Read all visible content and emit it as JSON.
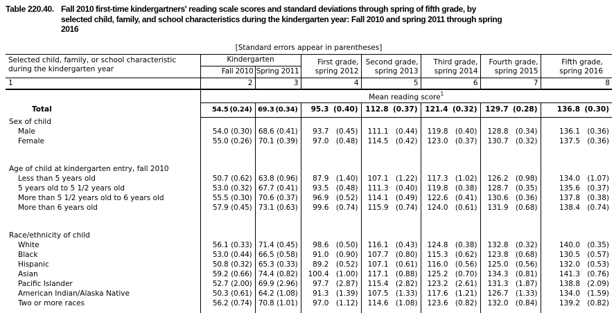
{
  "title": {
    "label": "Table 220.40.",
    "text": "Fall 2010 first-time kindergartners' reading scale scores and standard deviations through spring of fifth grade, by\nselected child, family, and school characteristics during the kindergarten year: Fall 2010 and spring 2011 through spring\n2016"
  },
  "note": "[Standard errors appear in parentheses]",
  "table": {
    "stub_header": "Selected child, family, or school characteristic\nduring the kindergarten year",
    "stub_number": "1",
    "group_header": "Kindergarten",
    "columns": [
      {
        "label": "Fall 2010",
        "number": "2"
      },
      {
        "label": "Spring 2011",
        "number": "3"
      },
      {
        "label": "First grade,\nspring 2012",
        "number": "4"
      },
      {
        "label": "Second grade,\nspring 2013",
        "number": "5"
      },
      {
        "label": "Third grade,\nspring 2014",
        "number": "6"
      },
      {
        "label": "Fourth grade,\nspring 2015",
        "number": "7"
      },
      {
        "label": "Fifth grade,\nspring 2016",
        "number": "8"
      }
    ],
    "measure_header": "Mean reading score",
    "measure_header_sup": "1",
    "rows": [
      {
        "type": "total",
        "label": "Total",
        "values": [
          [
            "54.5",
            "(0.24)"
          ],
          [
            "69.3",
            "(0.34)"
          ],
          [
            "95.3",
            "(0.40)"
          ],
          [
            "112.8",
            "(0.37)"
          ],
          [
            "121.4",
            "(0.32)"
          ],
          [
            "129.7",
            "(0.28)"
          ],
          [
            "136.8",
            "(0.30)"
          ]
        ]
      },
      {
        "type": "section",
        "label": "Sex of child"
      },
      {
        "type": "data",
        "label": "Male",
        "values": [
          [
            "54.0",
            "(0.30)"
          ],
          [
            "68.6",
            "(0.41)"
          ],
          [
            "93.7",
            "(0.45)"
          ],
          [
            "111.1",
            "(0.44)"
          ],
          [
            "119.8",
            "(0.40)"
          ],
          [
            "128.8",
            "(0.34)"
          ],
          [
            "136.1",
            "(0.36)"
          ]
        ]
      },
      {
        "type": "data",
        "label": "Female",
        "values": [
          [
            "55.0",
            "(0.26)"
          ],
          [
            "70.1",
            "(0.39)"
          ],
          [
            "97.0",
            "(0.48)"
          ],
          [
            "114.5",
            "(0.42)"
          ],
          [
            "123.0",
            "(0.37)"
          ],
          [
            "130.7",
            "(0.32)"
          ],
          [
            "137.5",
            "(0.36)"
          ]
        ]
      },
      {
        "type": "spacer"
      },
      {
        "type": "section",
        "label": "Age of child at kindergarten entry, fall 2010"
      },
      {
        "type": "data",
        "label": "Less than 5 years old",
        "values": [
          [
            "50.7",
            "(0.62)"
          ],
          [
            "63.8",
            "(0.96)"
          ],
          [
            "87.9",
            "(1.40)"
          ],
          [
            "107.1",
            "(1.22)"
          ],
          [
            "117.3",
            "(1.02)"
          ],
          [
            "126.2",
            "(0.98)"
          ],
          [
            "134.0",
            "(1.07)"
          ]
        ]
      },
      {
        "type": "data",
        "label": "5 years old to 5 1/2 years old",
        "values": [
          [
            "53.0",
            "(0.32)"
          ],
          [
            "67.7",
            "(0.41)"
          ],
          [
            "93.5",
            "(0.48)"
          ],
          [
            "111.3",
            "(0.40)"
          ],
          [
            "119.8",
            "(0.38)"
          ],
          [
            "128.7",
            "(0.35)"
          ],
          [
            "135.6",
            "(0.37)"
          ]
        ]
      },
      {
        "type": "data",
        "label": "More than 5 1/2 years old to 6 years old",
        "values": [
          [
            "55.5",
            "(0.30)"
          ],
          [
            "70.6",
            "(0.37)"
          ],
          [
            "96.9",
            "(0.52)"
          ],
          [
            "114.1",
            "(0.49)"
          ],
          [
            "122.6",
            "(0.41)"
          ],
          [
            "130.6",
            "(0.36)"
          ],
          [
            "137.8",
            "(0.38)"
          ]
        ]
      },
      {
        "type": "data",
        "label": "More than 6 years old",
        "values": [
          [
            "57.9",
            "(0.45)"
          ],
          [
            "73.1",
            "(0.63)"
          ],
          [
            "99.6",
            "(0.74)"
          ],
          [
            "115.9",
            "(0.74)"
          ],
          [
            "124.0",
            "(0.61)"
          ],
          [
            "131.9",
            "(0.68)"
          ],
          [
            "138.4",
            "(0.74)"
          ]
        ]
      },
      {
        "type": "spacer"
      },
      {
        "type": "section",
        "label": "Race/ethnicity of child"
      },
      {
        "type": "data",
        "label": "White",
        "values": [
          [
            "56.1",
            "(0.33)"
          ],
          [
            "71.4",
            "(0.45)"
          ],
          [
            "98.6",
            "(0.50)"
          ],
          [
            "116.1",
            "(0.43)"
          ],
          [
            "124.8",
            "(0.38)"
          ],
          [
            "132.8",
            "(0.32)"
          ],
          [
            "140.0",
            "(0.35)"
          ]
        ]
      },
      {
        "type": "data",
        "label": "Black",
        "values": [
          [
            "53.0",
            "(0.44)"
          ],
          [
            "66.5",
            "(0.58)"
          ],
          [
            "91.0",
            "(0.90)"
          ],
          [
            "107.7",
            "(0.80)"
          ],
          [
            "115.3",
            "(0.62)"
          ],
          [
            "123.8",
            "(0.68)"
          ],
          [
            "130.5",
            "(0.57)"
          ]
        ]
      },
      {
        "type": "data",
        "label": "Hispanic",
        "values": [
          [
            "50.8",
            "(0.32)"
          ],
          [
            "65.3",
            "(0.33)"
          ],
          [
            "89.2",
            "(0.52)"
          ],
          [
            "107.1",
            "(0.61)"
          ],
          [
            "116.0",
            "(0.56)"
          ],
          [
            "125.0",
            "(0.56)"
          ],
          [
            "132.0",
            "(0.53)"
          ]
        ]
      },
      {
        "type": "data",
        "label": "Asian",
        "values": [
          [
            "59.2",
            "(0.66)"
          ],
          [
            "74.4",
            "(0.82)"
          ],
          [
            "100.4",
            "(1.00)"
          ],
          [
            "117.1",
            "(0.88)"
          ],
          [
            "125.2",
            "(0.70)"
          ],
          [
            "134.3",
            "(0.81)"
          ],
          [
            "141.3",
            "(0.76)"
          ]
        ]
      },
      {
        "type": "data",
        "label": "Pacific Islander",
        "values": [
          [
            "52.7",
            "(2.00)"
          ],
          [
            "69.9",
            "(2.96)"
          ],
          [
            "97.7",
            "(2.87)"
          ],
          [
            "115.4",
            "(2.82)"
          ],
          [
            "123.2",
            "(2.61)"
          ],
          [
            "131.3",
            "(1.87)"
          ],
          [
            "138.8",
            "(2.09)"
          ]
        ]
      },
      {
        "type": "data",
        "label": "American Indian/Alaska Native",
        "values": [
          [
            "50.3",
            "(0.61)"
          ],
          [
            "64.2",
            "(1.08)"
          ],
          [
            "91.3",
            "(1.39)"
          ],
          [
            "107.5",
            "(1.33)"
          ],
          [
            "117.6",
            "(1.21)"
          ],
          [
            "126.7",
            "(1.33)"
          ],
          [
            "134.0",
            "(1.59)"
          ]
        ]
      },
      {
        "type": "data",
        "label": "Two or more races",
        "values": [
          [
            "56.2",
            "(0.74)"
          ],
          [
            "70.8",
            "(1.01)"
          ],
          [
            "97.0",
            "(1.12)"
          ],
          [
            "114.6",
            "(1.08)"
          ],
          [
            "123.6",
            "(0.82)"
          ],
          [
            "132.0",
            "(0.84)"
          ],
          [
            "139.2",
            "(0.82)"
          ]
        ]
      },
      {
        "type": "pad"
      }
    ]
  }
}
